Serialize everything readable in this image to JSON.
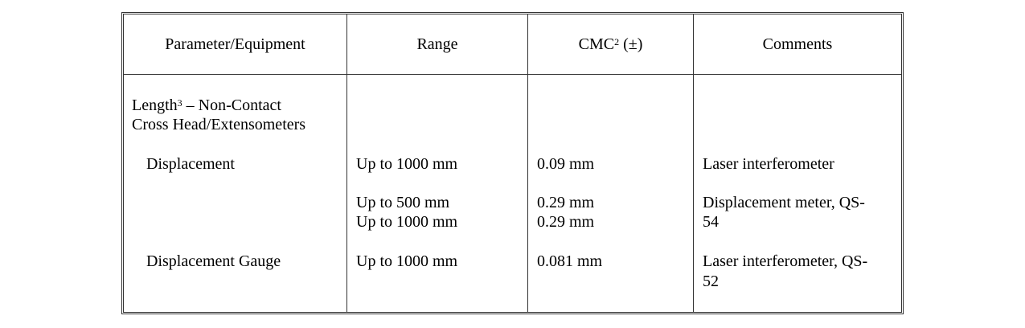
{
  "table": {
    "headers": [
      "Parameter/Equipment",
      "Range",
      "CMC",
      "Comments"
    ],
    "cmc_sup": "2",
    "cmc_suffix": " (±)",
    "section": {
      "title": "Length",
      "title_sup": "3",
      "title_rest": " – Non-Contact",
      "subtitle": "Cross Head/Extensometers"
    },
    "rows": [
      {
        "parameter": "Displacement",
        "range": [
          "Up to 1000 mm"
        ],
        "cmc": [
          "0.09 mm"
        ],
        "comments": [
          "Laser interferometer"
        ]
      },
      {
        "parameter": "",
        "range": [
          "Up to 500 mm",
          "Up to 1000 mm"
        ],
        "cmc": [
          "0.29 mm",
          "0.29 mm"
        ],
        "comments": [
          "Displacement meter, QS-",
          "54"
        ]
      },
      {
        "parameter": "Displacement Gauge",
        "range": [
          "Up to 1000 mm"
        ],
        "cmc": [
          "0.081 mm"
        ],
        "comments": [
          "Laser interferometer, QS-",
          "52"
        ]
      }
    ]
  }
}
